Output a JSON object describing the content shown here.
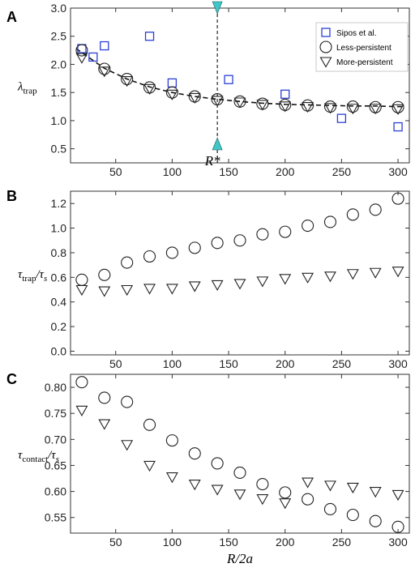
{
  "colors": {
    "sipos": "#2b3fd6",
    "marker": "#222222",
    "arrow": "#3fc6c6"
  },
  "chart_data": [
    {
      "panel_label": "A",
      "type": "scatter",
      "ylabel_main": "λ",
      "ylabel_sub": "trap",
      "xlim": [
        10,
        310
      ],
      "ylim": [
        0.25,
        3.0
      ],
      "xticks": [
        50,
        100,
        150,
        200,
        250,
        300
      ],
      "yticks": [
        0.5,
        1.0,
        1.5,
        2.0,
        2.5,
        3.0
      ],
      "ytick_labels": [
        "0.5",
        "1.0",
        "1.5",
        "2.0",
        "2.5",
        "3.0"
      ],
      "legend": {
        "placement": "top-right",
        "entries": [
          "Sipos et al.",
          "Less-persistent",
          "More-persistent"
        ]
      },
      "annotation": {
        "text": "R*",
        "x": 140
      },
      "fit_curve": {
        "style": "dashed",
        "x": [
          15,
          40,
          60,
          80,
          100,
          120,
          140,
          160,
          180,
          200,
          220,
          240,
          260,
          280,
          300,
          305
        ],
        "y": [
          2.28,
          1.93,
          1.74,
          1.6,
          1.5,
          1.43,
          1.38,
          1.34,
          1.31,
          1.29,
          1.28,
          1.27,
          1.26,
          1.26,
          1.25,
          1.25
        ]
      },
      "series": [
        {
          "name": "Sipos et al.",
          "marker": "square",
          "x": [
            20,
            30,
            40,
            80,
            100,
            150,
            200,
            250,
            300
          ],
          "y": [
            2.28,
            2.13,
            2.33,
            2.5,
            1.67,
            1.73,
            1.47,
            1.04,
            0.89
          ]
        },
        {
          "name": "Less-persistent",
          "marker": "circle",
          "x": [
            20,
            40,
            60,
            80,
            100,
            120,
            140,
            160,
            180,
            200,
            220,
            240,
            260,
            280,
            300
          ],
          "y": [
            2.25,
            1.92,
            1.74,
            1.59,
            1.5,
            1.43,
            1.38,
            1.34,
            1.3,
            1.28,
            1.27,
            1.25,
            1.25,
            1.24,
            1.24
          ]
        },
        {
          "name": "More-persistent",
          "marker": "triangle",
          "x": [
            20,
            40,
            60,
            80,
            100,
            120,
            140,
            160,
            180,
            200,
            220,
            240,
            260,
            280,
            300
          ],
          "y": [
            2.12,
            1.88,
            1.71,
            1.57,
            1.47,
            1.41,
            1.36,
            1.33,
            1.29,
            1.26,
            1.25,
            1.23,
            1.22,
            1.22,
            1.21
          ]
        }
      ]
    },
    {
      "panel_label": "B",
      "type": "scatter",
      "ylabel_main": "τ",
      "ylabel_sub": "trap",
      "ylabel_tail": "/τ",
      "ylabel_tail_sub": "s",
      "xlim": [
        10,
        310
      ],
      "ylim": [
        -0.03,
        1.3
      ],
      "xticks": [
        50,
        100,
        150,
        200,
        250,
        300
      ],
      "yticks": [
        0.0,
        0.2,
        0.4,
        0.6,
        0.8,
        1.0,
        1.2
      ],
      "ytick_labels": [
        "0.0",
        "0.2",
        "0.4",
        "0.6",
        "0.8",
        "1.0",
        "1.2"
      ],
      "series": [
        {
          "name": "Less-persistent",
          "marker": "circle",
          "x": [
            20,
            40,
            60,
            80,
            100,
            120,
            140,
            160,
            180,
            200,
            220,
            240,
            260,
            280,
            300
          ],
          "y": [
            0.58,
            0.62,
            0.72,
            0.77,
            0.8,
            0.84,
            0.88,
            0.9,
            0.95,
            0.97,
            1.02,
            1.05,
            1.11,
            1.15,
            1.24
          ]
        },
        {
          "name": "More-persistent",
          "marker": "triangle",
          "x": [
            20,
            40,
            60,
            80,
            100,
            120,
            140,
            160,
            180,
            200,
            220,
            240,
            260,
            280,
            300
          ],
          "y": [
            0.5,
            0.49,
            0.5,
            0.51,
            0.51,
            0.53,
            0.54,
            0.55,
            0.57,
            0.59,
            0.6,
            0.61,
            0.63,
            0.64,
            0.65
          ]
        }
      ]
    },
    {
      "panel_label": "C",
      "type": "scatter",
      "ylabel_main": "τ",
      "ylabel_sub": "contact",
      "ylabel_tail": "/τ",
      "ylabel_tail_sub": "s",
      "xlabel": "R/2a",
      "xlim": [
        10,
        310
      ],
      "ylim": [
        0.52,
        0.825
      ],
      "xticks": [
        50,
        100,
        150,
        200,
        250,
        300
      ],
      "yticks": [
        0.55,
        0.6,
        0.65,
        0.7,
        0.75,
        0.8
      ],
      "ytick_labels": [
        "0.55",
        "0.60",
        "0.65",
        "0.70",
        "0.75",
        "0.80"
      ],
      "series": [
        {
          "name": "Less-persistent",
          "marker": "circle",
          "x": [
            20,
            40,
            60,
            80,
            100,
            120,
            140,
            160,
            180,
            200,
            220,
            240,
            260,
            280,
            300
          ],
          "y": [
            0.81,
            0.78,
            0.772,
            0.728,
            0.698,
            0.673,
            0.654,
            0.636,
            0.614,
            0.598,
            0.585,
            0.566,
            0.555,
            0.543,
            0.532
          ]
        },
        {
          "name": "More-persistent",
          "marker": "triangle",
          "x": [
            20,
            40,
            60,
            80,
            100,
            120,
            140,
            160,
            180,
            200,
            220,
            240,
            260,
            280,
            300
          ],
          "y": [
            0.756,
            0.73,
            0.69,
            0.65,
            0.628,
            0.614,
            0.604,
            0.595,
            0.586,
            0.578,
            0.618,
            0.612,
            0.608,
            0.6,
            0.594
          ]
        }
      ]
    }
  ]
}
